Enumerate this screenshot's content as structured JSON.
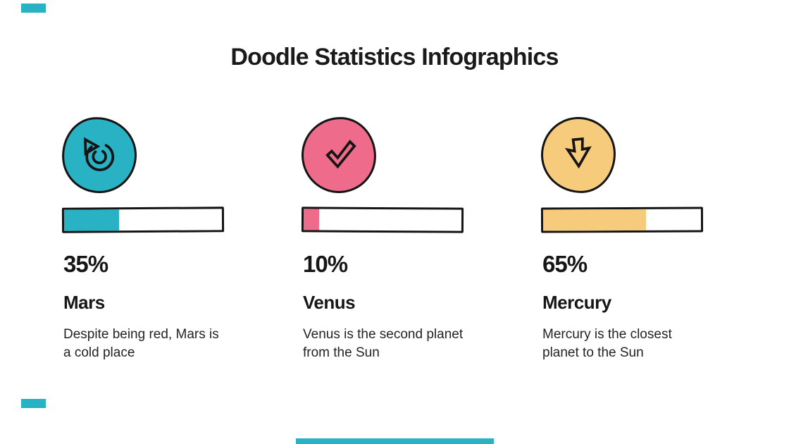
{
  "page": {
    "title": "Doodle Statistics Infographics",
    "background": "#ffffff"
  },
  "colors": {
    "teal": "#29B2C3",
    "pink": "#EE6B8C",
    "yellow": "#F6CB7B",
    "outline": "#141414",
    "text": "#161616",
    "accent": "#29B2C3"
  },
  "chart_data": {
    "type": "bar",
    "categories": [
      "Mars",
      "Venus",
      "Mercury"
    ],
    "values": [
      35,
      10,
      65
    ],
    "unit": "%",
    "title": "Doodle Statistics Infographics",
    "value_range": [
      0,
      100
    ],
    "legend": "none",
    "grid": false,
    "notes": "three horizontal doodle progress bars, one per planet"
  },
  "items": [
    {
      "icon": "rotate-arrow",
      "color": "#29B2C3",
      "percent": 35,
      "percent_label": "35%",
      "name": "Mars",
      "description": "Despite being red, Mars is a cold place"
    },
    {
      "icon": "checkmark",
      "color": "#EE6B8C",
      "percent": 10,
      "percent_label": "10%",
      "name": "Venus",
      "description": "Venus is the second planet from the Sun"
    },
    {
      "icon": "arrow-down",
      "color": "#F6CB7B",
      "percent": 65,
      "percent_label": "65%",
      "name": "Mercury",
      "description": "Mercury is the closest planet to the Sun"
    }
  ]
}
